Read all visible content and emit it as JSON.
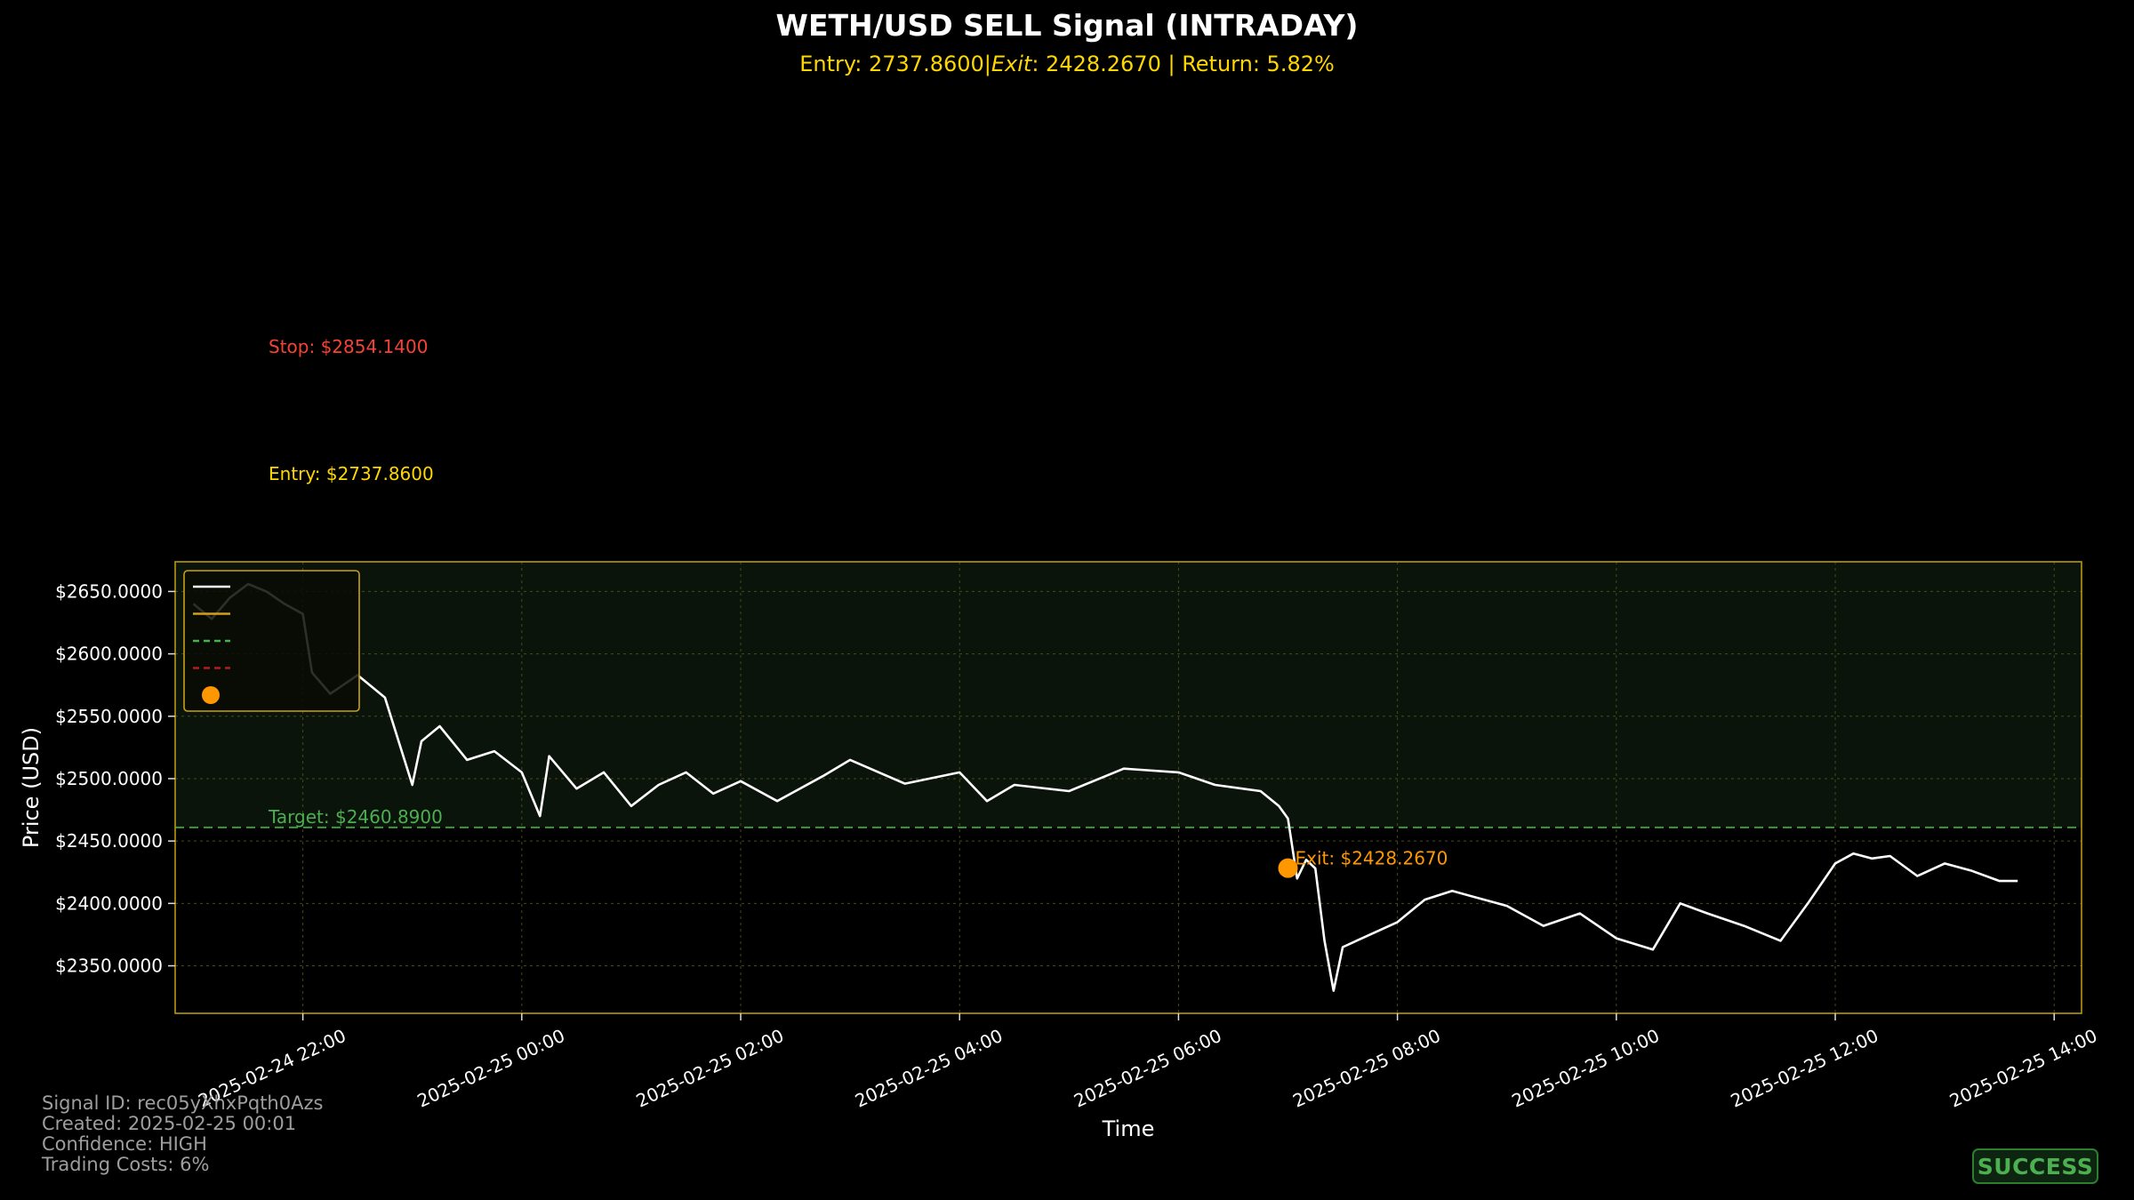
{
  "chart_data": {
    "type": "line",
    "title": "WETH/USD SELL Signal (INTRADAY)",
    "subtitle": "Entry: 2737.8600|$Exit: 2428.2670$ | Return: 5.82%",
    "subtitle_parts": {
      "entry": "Entry: 2737.8600|",
      "exit_label": "Exit",
      "exit_value": ": 2428.2670",
      "ret": " | Return: 5.82%"
    },
    "xlabel": "Time",
    "ylabel": "Price (USD)",
    "ylim": [
      2311.9,
      2673.8
    ],
    "xlim": [
      "2025-02-24 20:50",
      "2025-02-25 14:15"
    ],
    "grid": true,
    "x_ticks": [
      "2025-02-24 22:00",
      "2025-02-25 00:00",
      "2025-02-25 02:00",
      "2025-02-25 04:00",
      "2025-02-25 06:00",
      "2025-02-25 08:00",
      "2025-02-25 10:00",
      "2025-02-25 12:00",
      "2025-02-25 14:00"
    ],
    "y_ticks": [
      {
        "value": 2350,
        "label": "$2350.0000"
      },
      {
        "value": 2400,
        "label": "$2400.0000"
      },
      {
        "value": 2450,
        "label": "$2450.0000"
      },
      {
        "value": 2500,
        "label": "$2500.0000"
      },
      {
        "value": 2550,
        "label": "$2550.0000"
      },
      {
        "value": 2600,
        "label": "$2600.0000"
      },
      {
        "value": 2650,
        "label": "$2650.0000"
      }
    ],
    "series": [
      {
        "name": "",
        "color": "#ffffff",
        "x": [
          "2025-02-24 21:00",
          "2025-02-24 21:10",
          "2025-02-24 21:20",
          "2025-02-24 21:30",
          "2025-02-24 21:40",
          "2025-02-24 21:50",
          "2025-02-24 22:00",
          "2025-02-24 22:05",
          "2025-02-24 22:15",
          "2025-02-24 22:30",
          "2025-02-24 22:45",
          "2025-02-24 23:00",
          "2025-02-24 23:05",
          "2025-02-24 23:15",
          "2025-02-24 23:30",
          "2025-02-24 23:45",
          "2025-02-25 00:00",
          "2025-02-25 00:10",
          "2025-02-25 00:15",
          "2025-02-25 00:30",
          "2025-02-25 00:45",
          "2025-02-25 01:00",
          "2025-02-25 01:15",
          "2025-02-25 01:30",
          "2025-02-25 01:45",
          "2025-02-25 02:00",
          "2025-02-25 02:20",
          "2025-02-25 02:45",
          "2025-02-25 03:00",
          "2025-02-25 03:30",
          "2025-02-25 04:00",
          "2025-02-25 04:15",
          "2025-02-25 04:30",
          "2025-02-25 05:00",
          "2025-02-25 05:30",
          "2025-02-25 06:00",
          "2025-02-25 06:20",
          "2025-02-25 06:45",
          "2025-02-25 06:55",
          "2025-02-25 07:00",
          "2025-02-25 07:05",
          "2025-02-25 07:10",
          "2025-02-25 07:15",
          "2025-02-25 07:20",
          "2025-02-25 07:25",
          "2025-02-25 07:30",
          "2025-02-25 07:45",
          "2025-02-25 08:00",
          "2025-02-25 08:15",
          "2025-02-25 08:30",
          "2025-02-25 09:00",
          "2025-02-25 09:20",
          "2025-02-25 09:40",
          "2025-02-25 10:00",
          "2025-02-25 10:20",
          "2025-02-25 10:35",
          "2025-02-25 10:50",
          "2025-02-25 11:10",
          "2025-02-25 11:30",
          "2025-02-25 11:45",
          "2025-02-25 12:00",
          "2025-02-25 12:10",
          "2025-02-25 12:20",
          "2025-02-25 12:30",
          "2025-02-25 12:45",
          "2025-02-25 13:00",
          "2025-02-25 13:15",
          "2025-02-25 13:30",
          "2025-02-25 13:40"
        ],
        "y": [
          2640,
          2628,
          2645,
          2656,
          2650,
          2640,
          2632,
          2585,
          2568,
          2583,
          2565,
          2495,
          2530,
          2542,
          2515,
          2522,
          2505,
          2470,
          2518,
          2492,
          2505,
          2478,
          2495,
          2505,
          2488,
          2498,
          2482,
          2502,
          2515,
          2496,
          2505,
          2482,
          2495,
          2490,
          2508,
          2505,
          2495,
          2490,
          2478,
          2468,
          2420,
          2435,
          2428,
          2370,
          2330,
          2365,
          2375,
          2385,
          2403,
          2410,
          2398,
          2382,
          2392,
          2372,
          2363,
          2400,
          2392,
          2382,
          2370,
          2400,
          2432,
          2440,
          2436,
          2438,
          2422,
          2432,
          2426,
          2418,
          2418
        ]
      }
    ],
    "legend": {
      "placement": "upper-left",
      "entries": [
        {
          "label": "",
          "color": "#ffffff",
          "style": "solid"
        },
        {
          "label": "",
          "color": "#d4a017",
          "style": "solid"
        },
        {
          "label": "",
          "color": "#4caf50",
          "style": "dashed"
        },
        {
          "label": "",
          "color": "#b71c1c",
          "style": "dashed"
        },
        {
          "label": "",
          "color": "#ff9800",
          "style": "dot"
        }
      ]
    },
    "annotations": {
      "stop": {
        "label": "Stop: $2854.1400",
        "value": 2854.14,
        "color": "#f44336"
      },
      "entry": {
        "label": "Entry: $2737.8600",
        "value": 2737.86,
        "color": "#ffd700"
      },
      "target": {
        "label": "Target: $2460.8900",
        "value": 2460.89,
        "color": "#4caf50"
      },
      "exit": {
        "label": "Exit: $2428.2670",
        "value": 2428.267,
        "time": "2025-02-25 07:00",
        "color": "#ff9800"
      }
    },
    "profit_zone": {
      "from": 2460.89,
      "to": 2737.86,
      "color": "#1b5e20"
    }
  },
  "info": {
    "signal_id": "Signal ID: rec05yXhxPqth0Azs",
    "created": "Created: 2025-02-25 00:01",
    "confidence": "Confidence: HIGH",
    "costs": "Trading Costs: 6%"
  },
  "status_badge": "SUCCESS"
}
